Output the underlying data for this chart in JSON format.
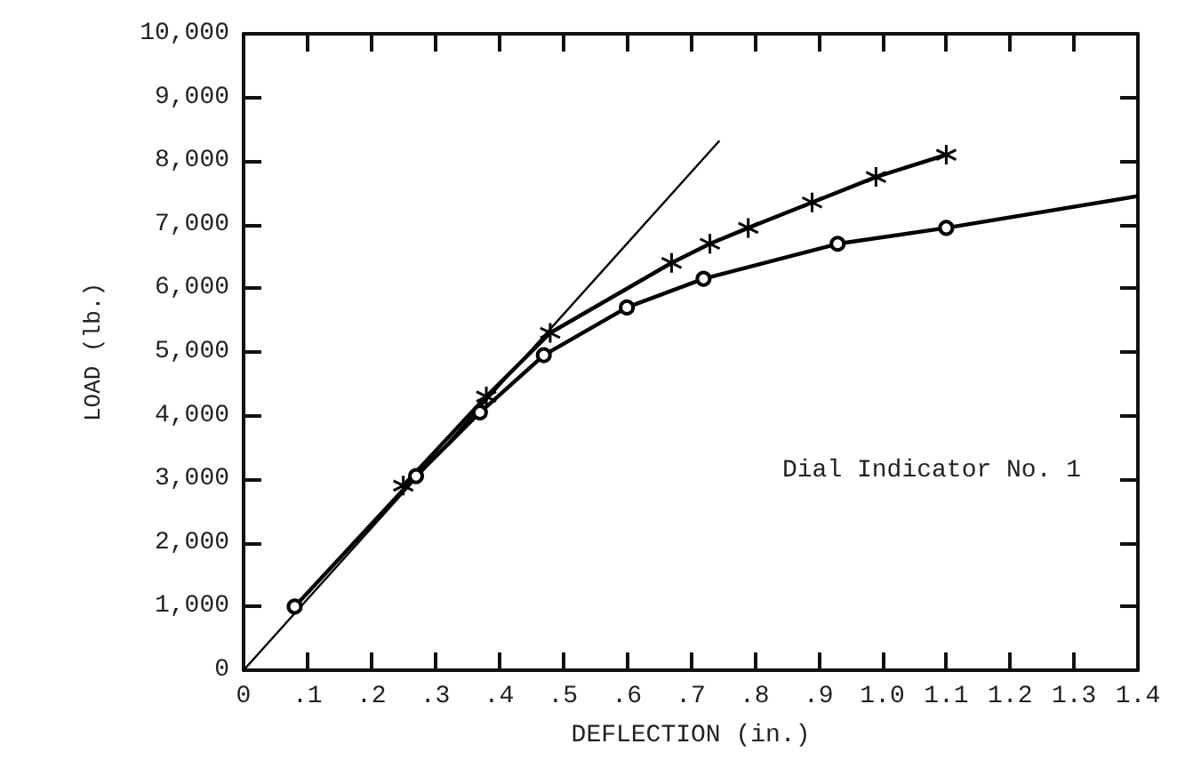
{
  "chart_data": {
    "type": "line",
    "xlabel": "DEFLECTION (in.)",
    "ylabel": "LOAD (lb.)",
    "annotations": [
      "Dial Indicator No. 1"
    ],
    "xlim": [
      0,
      1.4
    ],
    "ylim": [
      0,
      10000
    ],
    "xticks": [
      0,
      {
        "value": 0.1,
        "label": ".1"
      },
      {
        "value": 0.2,
        "label": ".2"
      },
      {
        "value": 0.3,
        "label": ".3"
      },
      {
        "value": 0.4,
        "label": ".4"
      },
      {
        "value": 0.5,
        "label": ".5"
      },
      {
        "value": 0.6,
        "label": ".6"
      },
      {
        "value": 0.7,
        "label": ".7"
      },
      {
        "value": 0.8,
        "label": ".8"
      },
      {
        "value": 0.9,
        "label": ".9"
      },
      {
        "value": 1.0,
        "label": "1.0"
      },
      1.1,
      1.2,
      1.3,
      1.4
    ],
    "yticks": [
      0,
      {
        "value": 1000,
        "label": "1,000"
      },
      {
        "value": 2000,
        "label": "2,000"
      },
      {
        "value": 3000,
        "label": "3,000"
      },
      {
        "value": 4000,
        "label": "4,000"
      },
      {
        "value": 5000,
        "label": "5,000"
      },
      {
        "value": 6000,
        "label": "6,000"
      },
      {
        "value": 7000,
        "label": "7,000"
      },
      {
        "value": 8000,
        "label": "8,000"
      },
      {
        "value": 9000,
        "label": "9,000"
      },
      {
        "value": 10000,
        "label": "10,000"
      }
    ],
    "grid": false,
    "series": [
      {
        "color": "#000000",
        "marker": "none",
        "x": [
          0,
          0.745
        ],
        "values": [
          0,
          8320
        ]
      },
      {
        "color": "#000000",
        "marker": "circle",
        "x": [
          0.08,
          0.27,
          0.37,
          0.47,
          0.6,
          0.72,
          0.93,
          1.1
        ],
        "values": [
          1000,
          3050,
          4050,
          4950,
          5700,
          6150,
          6700,
          6950
        ]
      },
      {
        "color": "#000000",
        "marker": "none",
        "x": [
          1.1,
          1.4
        ],
        "values": [
          6950,
          7450
        ]
      },
      {
        "color": "#000000",
        "marker": "cross",
        "x": [
          0.25,
          0.38,
          0.48,
          0.67,
          0.73,
          0.79,
          0.89,
          0.99,
          1.1
        ],
        "values": [
          2900,
          4300,
          5300,
          6400,
          6700,
          6950,
          7350,
          7750,
          8100
        ]
      }
    ]
  }
}
